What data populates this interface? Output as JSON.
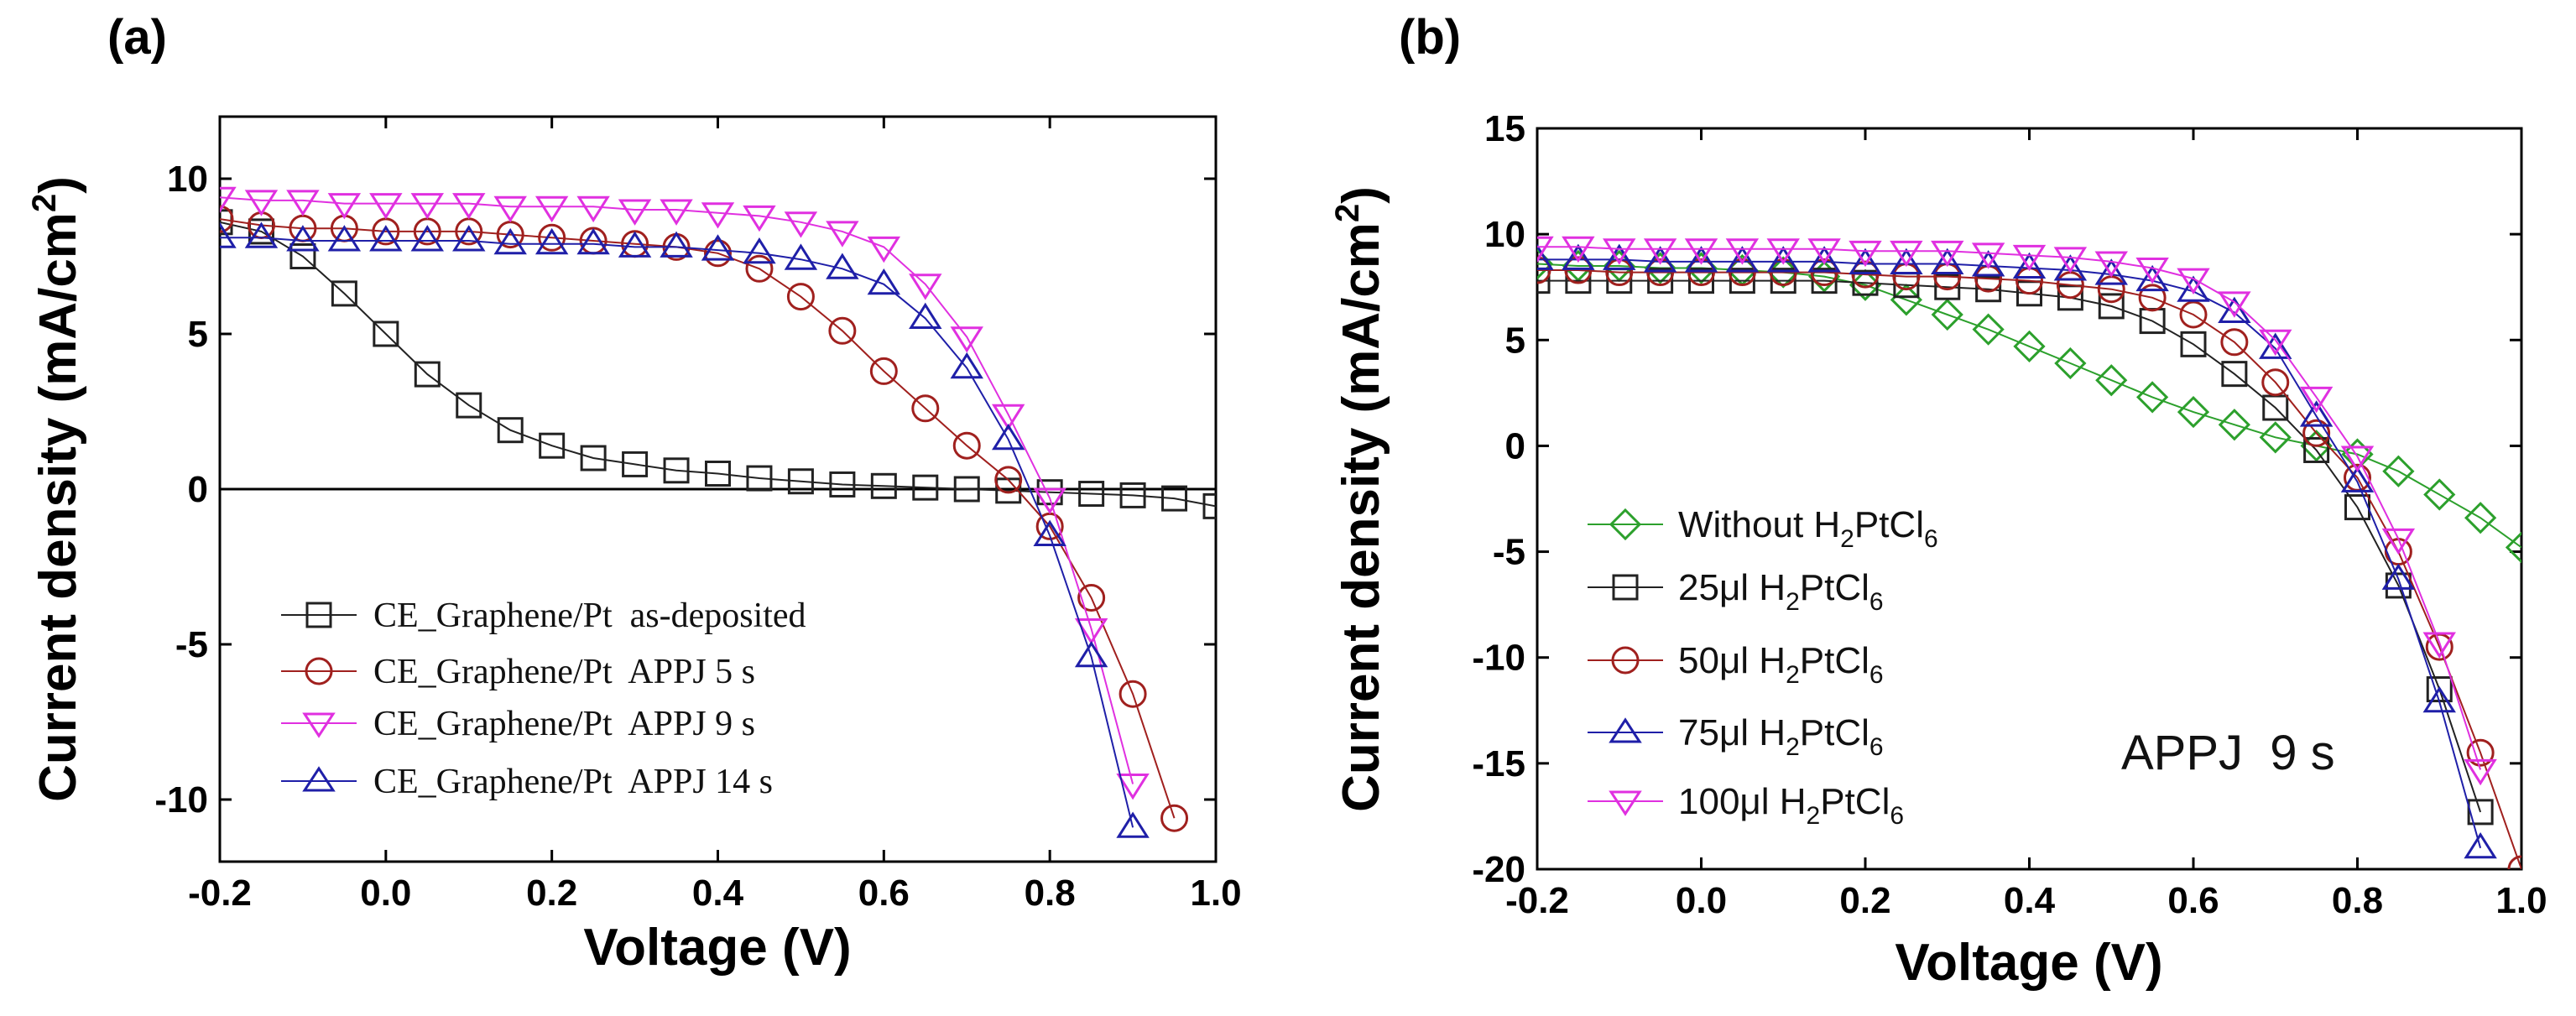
{
  "chart_data": [
    {
      "panel": "(a)",
      "type": "line",
      "xlabel": "Voltage (V)",
      "ylabel": "Current density (mA/cm",
      "ylabel_sup": "2",
      "ylabel_close": ")",
      "xlim": [
        -0.2,
        1.0
      ],
      "ylim": [
        -12,
        12
      ],
      "xticks": [
        -0.2,
        0.0,
        0.2,
        0.4,
        0.6,
        0.8,
        1.0
      ],
      "xtick_labels": [
        "-0.2",
        "0.0",
        "0.2",
        "0.4",
        "0.6",
        "0.8",
        "1.0"
      ],
      "yticks": [
        -10,
        -5,
        0,
        5,
        10
      ],
      "ytick_labels": [
        "-10",
        "-5",
        "0",
        "5",
        "10"
      ],
      "zero_line": 0,
      "legend_position": "bottom-left",
      "series": [
        {
          "name": "CE_Graphene/Pt  as-deposited",
          "marker": "square",
          "color": "#222222",
          "x": [
            -0.2,
            -0.15,
            -0.1,
            -0.05,
            0.0,
            0.05,
            0.1,
            0.15,
            0.2,
            0.25,
            0.3,
            0.35,
            0.4,
            0.45,
            0.5,
            0.55,
            0.6,
            0.65,
            0.7,
            0.75,
            0.8,
            0.85,
            0.9,
            0.95,
            1.0
          ],
          "y": [
            8.6,
            8.3,
            7.5,
            6.3,
            5.0,
            3.7,
            2.7,
            1.9,
            1.4,
            1.0,
            0.8,
            0.6,
            0.5,
            0.35,
            0.25,
            0.15,
            0.1,
            0.05,
            0.0,
            -0.05,
            -0.1,
            -0.15,
            -0.2,
            -0.3,
            -0.55
          ]
        },
        {
          "name": "CE_Graphene/Pt  APPJ 5 s",
          "marker": "circle",
          "color": "#a0201e",
          "x": [
            -0.2,
            -0.15,
            -0.1,
            -0.05,
            0.0,
            0.05,
            0.1,
            0.15,
            0.2,
            0.25,
            0.3,
            0.35,
            0.4,
            0.45,
            0.5,
            0.55,
            0.6,
            0.65,
            0.7,
            0.75,
            0.8,
            0.85,
            0.9,
            0.95
          ],
          "y": [
            8.7,
            8.5,
            8.4,
            8.4,
            8.3,
            8.3,
            8.3,
            8.2,
            8.1,
            8.0,
            7.9,
            7.8,
            7.6,
            7.1,
            6.2,
            5.1,
            3.8,
            2.6,
            1.4,
            0.3,
            -1.2,
            -3.5,
            -6.6,
            -10.6
          ]
        },
        {
          "name": "CE_Graphene/Pt  APPJ 9 s",
          "marker": "triangle-down",
          "color": "#e030e0",
          "x": [
            -0.2,
            -0.15,
            -0.1,
            -0.05,
            0.0,
            0.05,
            0.1,
            0.15,
            0.2,
            0.25,
            0.3,
            0.35,
            0.4,
            0.45,
            0.5,
            0.55,
            0.6,
            0.65,
            0.7,
            0.75,
            0.8,
            0.85,
            0.9
          ],
          "y": [
            9.4,
            9.3,
            9.3,
            9.2,
            9.2,
            9.2,
            9.2,
            9.1,
            9.1,
            9.1,
            9.0,
            9.0,
            8.9,
            8.8,
            8.6,
            8.3,
            7.8,
            6.6,
            4.9,
            2.4,
            -0.3,
            -4.5,
            -9.5
          ]
        },
        {
          "name": "CE_Graphene/Pt  APPJ 14 s",
          "marker": "triangle-up",
          "color": "#1f1fa8",
          "x": [
            -0.2,
            -0.15,
            -0.1,
            -0.05,
            0.0,
            0.05,
            0.1,
            0.15,
            0.2,
            0.25,
            0.3,
            0.35,
            0.4,
            0.45,
            0.5,
            0.55,
            0.6,
            0.65,
            0.7,
            0.75,
            0.8,
            0.85,
            0.9
          ],
          "y": [
            8.1,
            8.1,
            8.0,
            8.0,
            8.0,
            8.0,
            8.0,
            7.9,
            7.9,
            7.9,
            7.8,
            7.8,
            7.7,
            7.6,
            7.4,
            7.1,
            6.6,
            5.5,
            3.9,
            1.6,
            -1.5,
            -5.4,
            -10.9
          ]
        }
      ]
    },
    {
      "panel": "(b)",
      "type": "line",
      "xlabel": "Voltage (V)",
      "ylabel": "Current density (mA/cm",
      "ylabel_sup": "2",
      "ylabel_close": ")",
      "xlim": [
        -0.2,
        1.0
      ],
      "ylim": [
        -20,
        15
      ],
      "xticks": [
        -0.2,
        0.0,
        0.2,
        0.4,
        0.6,
        0.8,
        1.0
      ],
      "xtick_labels": [
        "-0.2",
        "0.0",
        "0.2",
        "0.4",
        "0.6",
        "0.8",
        "1.0"
      ],
      "yticks": [
        -20,
        -15,
        -10,
        -5,
        0,
        5,
        10,
        15
      ],
      "ytick_labels": [
        "-20",
        "-15",
        "-10",
        "-5",
        "0",
        "5",
        "10",
        "15"
      ],
      "annotation": "APPJ  9 s",
      "legend_position": "bottom-left",
      "series": [
        {
          "name_prefix": "Without H",
          "name_sub1": "2",
          "name_mid": "PtCl",
          "name_sub2": "6",
          "marker": "diamond",
          "color": "#2ca02c",
          "x": [
            -0.2,
            -0.15,
            -0.1,
            -0.05,
            0.0,
            0.05,
            0.1,
            0.15,
            0.2,
            0.25,
            0.3,
            0.35,
            0.4,
            0.45,
            0.5,
            0.55,
            0.6,
            0.65,
            0.7,
            0.75,
            0.8,
            0.85,
            0.9,
            0.95,
            1.0
          ],
          "y": [
            8.6,
            8.5,
            8.5,
            8.4,
            8.4,
            8.3,
            8.2,
            8.0,
            7.6,
            6.9,
            6.2,
            5.5,
            4.7,
            3.9,
            3.1,
            2.3,
            1.6,
            1.0,
            0.4,
            0.0,
            -0.4,
            -1.2,
            -2.3,
            -3.4,
            -4.8
          ]
        },
        {
          "name_prefix": "25μl H",
          "name_sub1": "2",
          "name_mid": "PtCl",
          "name_sub2": "6",
          "marker": "square",
          "color": "#222222",
          "x": [
            -0.2,
            -0.15,
            -0.1,
            -0.05,
            0.0,
            0.05,
            0.1,
            0.15,
            0.2,
            0.25,
            0.3,
            0.35,
            0.4,
            0.45,
            0.5,
            0.55,
            0.6,
            0.65,
            0.7,
            0.75,
            0.8,
            0.85,
            0.9,
            0.95
          ],
          "y": [
            7.8,
            7.8,
            7.8,
            7.8,
            7.8,
            7.8,
            7.8,
            7.8,
            7.7,
            7.6,
            7.5,
            7.4,
            7.2,
            7.0,
            6.6,
            5.9,
            4.8,
            3.4,
            1.8,
            -0.2,
            -2.9,
            -6.6,
            -11.5,
            -17.3
          ]
        },
        {
          "name_prefix": "50μl H",
          "name_sub1": "2",
          "name_mid": "PtCl",
          "name_sub2": "6",
          "marker": "circle",
          "color": "#a0201e",
          "x": [
            -0.2,
            -0.15,
            -0.1,
            -0.05,
            0.0,
            0.05,
            0.1,
            0.15,
            0.2,
            0.25,
            0.3,
            0.35,
            0.4,
            0.45,
            0.5,
            0.55,
            0.6,
            0.65,
            0.7,
            0.75,
            0.8,
            0.85,
            0.9,
            0.95,
            1.0
          ],
          "y": [
            8.3,
            8.3,
            8.2,
            8.2,
            8.2,
            8.2,
            8.2,
            8.2,
            8.1,
            8.0,
            8.0,
            7.9,
            7.8,
            7.6,
            7.4,
            7.0,
            6.2,
            4.9,
            3.0,
            0.6,
            -1.5,
            -5.0,
            -9.5,
            -14.5,
            -20.0
          ]
        },
        {
          "name_prefix": "75μl H",
          "name_sub1": "2",
          "name_mid": "PtCl",
          "name_sub2": "6",
          "marker": "triangle-up",
          "color": "#1f1fa8",
          "x": [
            -0.2,
            -0.15,
            -0.1,
            -0.05,
            0.0,
            0.05,
            0.1,
            0.15,
            0.2,
            0.25,
            0.3,
            0.35,
            0.4,
            0.45,
            0.5,
            0.55,
            0.6,
            0.65,
            0.7,
            0.75,
            0.8,
            0.85,
            0.9,
            0.95
          ],
          "y": [
            8.8,
            8.8,
            8.8,
            8.7,
            8.7,
            8.7,
            8.7,
            8.7,
            8.6,
            8.6,
            8.6,
            8.5,
            8.4,
            8.3,
            8.1,
            7.8,
            7.3,
            6.3,
            4.6,
            1.4,
            -1.7,
            -6.3,
            -12.1,
            -19.0
          ]
        },
        {
          "name_prefix": "100μl H",
          "name_sub1": "2",
          "name_mid": "PtCl",
          "name_sub2": "6",
          "marker": "triangle-down",
          "color": "#e030e0",
          "x": [
            -0.2,
            -0.15,
            -0.1,
            -0.05,
            0.0,
            0.05,
            0.1,
            0.15,
            0.2,
            0.25,
            0.3,
            0.35,
            0.4,
            0.45,
            0.5,
            0.55,
            0.6,
            0.65,
            0.7,
            0.75,
            0.8,
            0.85,
            0.9,
            0.95
          ],
          "y": [
            9.4,
            9.4,
            9.3,
            9.3,
            9.3,
            9.3,
            9.3,
            9.3,
            9.2,
            9.2,
            9.2,
            9.1,
            9.0,
            8.9,
            8.7,
            8.4,
            7.9,
            6.8,
            5.0,
            2.3,
            -0.5,
            -4.4,
            -9.3,
            -15.3
          ]
        }
      ]
    }
  ]
}
